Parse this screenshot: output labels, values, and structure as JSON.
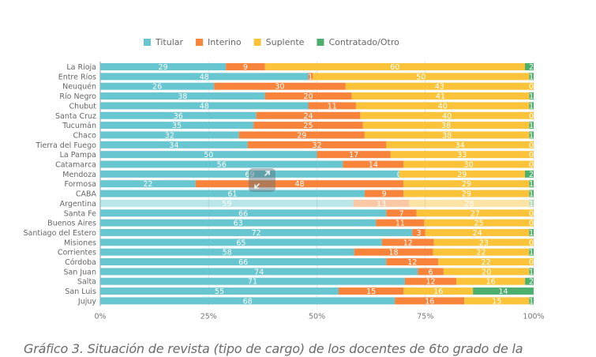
{
  "chart_data": {
    "type": "bar",
    "orientation": "horizontal",
    "stacked": "percent",
    "categories": [
      "La Rioja",
      "Entre Ríos",
      "Neuquén",
      "Río Negro",
      "Chubut",
      "Santa Cruz",
      "Tucumán",
      "Chaco",
      "Tierra del Fuego",
      "La Pampa",
      "Catamarca",
      "Mendoza",
      "Formosa",
      "CABA",
      "Argentina",
      "Santa Fe",
      "Buenos Aires",
      "Santiago del Estero",
      "Misiones",
      "Corrientes",
      "Córdoba",
      "San Juan",
      "Salta",
      "San Luis",
      "Jujuy"
    ],
    "highlighted_category": "Argentina",
    "series": [
      {
        "name": "Titular",
        "color": "#67c6cf",
        "values": [
          29,
          48,
          26,
          38,
          48,
          36,
          35,
          32,
          34,
          50,
          56,
          69,
          22,
          61,
          59,
          66,
          63,
          72,
          65,
          58,
          66,
          74,
          71,
          55,
          68
        ]
      },
      {
        "name": "Interino",
        "color": "#f7843a",
        "values": [
          9,
          1,
          30,
          20,
          11,
          24,
          25,
          29,
          32,
          17,
          14,
          0,
          48,
          9,
          13,
          7,
          11,
          3,
          12,
          18,
          12,
          6,
          12,
          15,
          16
        ]
      },
      {
        "name": "Suplente",
        "color": "#fbc33a",
        "values": [
          60,
          50,
          43,
          41,
          40,
          40,
          38,
          38,
          34,
          33,
          30,
          29,
          29,
          29,
          28,
          27,
          25,
          24,
          23,
          22,
          22,
          20,
          16,
          16,
          15
        ]
      },
      {
        "name": "Contratado/Otro",
        "color": "#4caf6e",
        "values": [
          2,
          1,
          0,
          1,
          1,
          0,
          1,
          1,
          0,
          0,
          0,
          2,
          1,
          1,
          1,
          0,
          0,
          1,
          0,
          1,
          0,
          1,
          2,
          14,
          1
        ]
      }
    ],
    "x_ticks": [
      "0%",
      "25%",
      "50%",
      "75%",
      "100%"
    ],
    "xlim": [
      0,
      100
    ],
    "grid": true,
    "legend": "top-center",
    "title": "",
    "xlabel": "",
    "ylabel": ""
  },
  "caption": "Gráfico 3. Situación de revista (tipo de cargo) de los docentes de 6to grado de la",
  "controls": {
    "expand_icon": "expand-arrows-icon"
  }
}
